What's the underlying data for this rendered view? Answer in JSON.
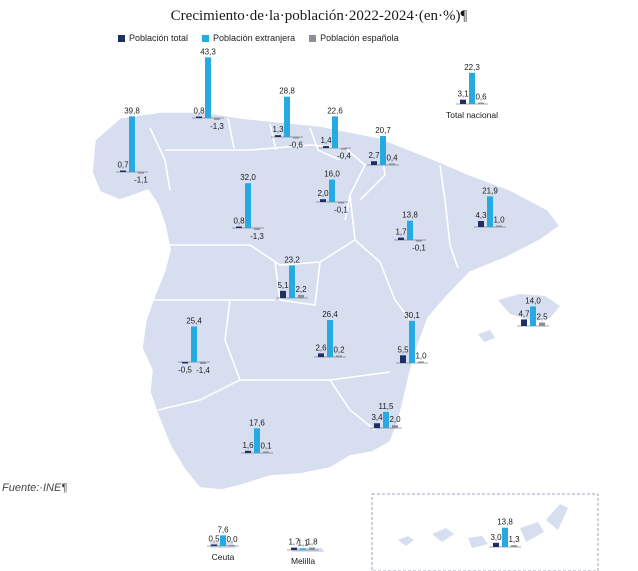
{
  "title": "Crecimiento·de·la·población·2022-2024·(en·%)¶",
  "source": "Fuente:·INE¶",
  "colors": {
    "total": "#1c2f66",
    "extranjera": "#27a9e1",
    "espanola": "#8a8f99",
    "land": "#d6def0",
    "border": "#ffffff"
  },
  "legend": [
    {
      "key": "total",
      "label": "Población total"
    },
    {
      "key": "extranjera",
      "label": "Población extranjera"
    },
    {
      "key": "espanola",
      "label": "Población española"
    }
  ],
  "chart_data": {
    "type": "bar",
    "series_keys": [
      "total",
      "extranjera",
      "espanola"
    ],
    "series_names": [
      "Población total",
      "Población extranjera",
      "Población española"
    ],
    "regions": [
      {
        "id": "total-nacional",
        "name": "Total nacional",
        "values": [
          3.1,
          22.3,
          0.6
        ]
      },
      {
        "id": "galicia",
        "name": "",
        "values": [
          0.7,
          39.8,
          -1.1
        ]
      },
      {
        "id": "asturias",
        "name": "",
        "values": [
          0.8,
          43.3,
          -1.3
        ]
      },
      {
        "id": "cantabria",
        "name": "",
        "values": [
          1.3,
          28.8,
          -0.6
        ]
      },
      {
        "id": "pais-vasco",
        "name": "",
        "values": [
          1.4,
          22.6,
          -0.4
        ]
      },
      {
        "id": "navarra",
        "name": "",
        "values": [
          2.7,
          20.7,
          0.4
        ]
      },
      {
        "id": "la-rioja",
        "name": "",
        "values": [
          2.0,
          16.0,
          -0.1
        ]
      },
      {
        "id": "castilla-y-leon",
        "name": "",
        "values": [
          0.8,
          32.0,
          -1.3
        ]
      },
      {
        "id": "aragon",
        "name": "",
        "values": [
          1.7,
          13.8,
          -0.1
        ]
      },
      {
        "id": "cataluna",
        "name": "",
        "values": [
          4.3,
          21.9,
          1.0
        ]
      },
      {
        "id": "madrid",
        "name": "",
        "values": [
          5.1,
          23.2,
          2.2
        ]
      },
      {
        "id": "baleares",
        "name": "",
        "values": [
          4.7,
          14.0,
          2.5
        ]
      },
      {
        "id": "extremadura",
        "name": "",
        "values": [
          -0.5,
          25.4,
          -1.4
        ]
      },
      {
        "id": "castilla-la-mancha",
        "name": "",
        "values": [
          2.6,
          26.4,
          0.2
        ]
      },
      {
        "id": "com-valenciana",
        "name": "",
        "values": [
          5.5,
          30.1,
          1.0
        ]
      },
      {
        "id": "murcia",
        "name": "",
        "values": [
          3.4,
          11.5,
          2.0
        ]
      },
      {
        "id": "andalucia",
        "name": "",
        "values": [
          1.6,
          17.6,
          0.1
        ]
      },
      {
        "id": "canarias",
        "name": "",
        "values": [
          3.0,
          13.8,
          1.3
        ]
      },
      {
        "id": "ceuta",
        "name": "Ceuta",
        "values": [
          0.5,
          7.6,
          0.0
        ]
      },
      {
        "id": "melilla",
        "name": "Melilla",
        "values": [
          1.7,
          1.1,
          1.8
        ]
      }
    ]
  }
}
